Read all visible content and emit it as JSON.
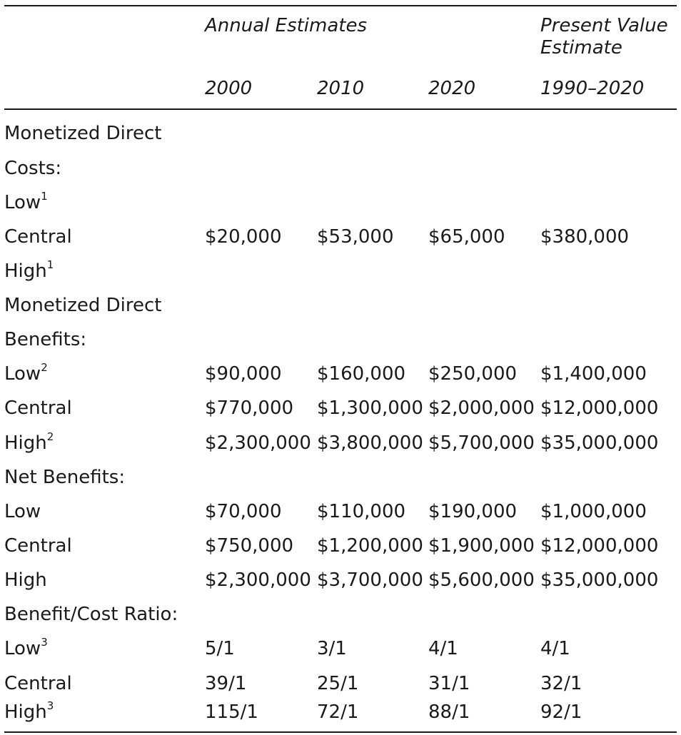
{
  "header": {
    "group_annual": "Annual Estimates",
    "group_pv_line1": "Present Value",
    "group_pv_line2": "Estimate",
    "years": [
      "2000",
      "2010",
      "2020",
      "1990–2020"
    ]
  },
  "rows": [
    {
      "label": "Monetized Direct",
      "sup": "",
      "values": [
        "",
        "",
        "",
        ""
      ]
    },
    {
      "label": "Costs:",
      "sup": "",
      "values": [
        "",
        "",
        "",
        ""
      ]
    },
    {
      "label": "Low",
      "sup": "1",
      "values": [
        "",
        "",
        "",
        ""
      ]
    },
    {
      "label": "Central",
      "sup": "",
      "values": [
        "$20,000",
        "$53,000",
        "$65,000",
        "$380,000"
      ]
    },
    {
      "label": "High",
      "sup": "1",
      "values": [
        "",
        "",
        "",
        ""
      ]
    },
    {
      "label": "Monetized Direct",
      "sup": "",
      "values": [
        "",
        "",
        "",
        ""
      ]
    },
    {
      "label": "Benefits:",
      "sup": "",
      "values": [
        "",
        "",
        "",
        ""
      ]
    },
    {
      "label": "Low",
      "sup": "2",
      "values": [
        "$90,000",
        "$160,000",
        "$250,000",
        "$1,400,000"
      ]
    },
    {
      "label": "Central",
      "sup": "",
      "values": [
        "$770,000",
        "$1,300,000",
        "$2,000,000",
        "$12,000,000"
      ]
    },
    {
      "label": "High",
      "sup": "2",
      "values": [
        "$2,300,000",
        "$3,800,000",
        "$5,700,000",
        "$35,000,000"
      ]
    },
    {
      "label": "Net Benefits:",
      "sup": "",
      "values": [
        "",
        "",
        "",
        ""
      ]
    },
    {
      "label": "Low",
      "sup": "",
      "values": [
        "$70,000",
        "$110,000",
        "$190,000",
        "$1,000,000"
      ]
    },
    {
      "label": "Central",
      "sup": "",
      "values": [
        "$750,000",
        "$1,200,000",
        "$1,900,000",
        "$12,000,000"
      ]
    },
    {
      "label": "High",
      "sup": "",
      "values": [
        "$2,300,000",
        "$3,700,000",
        "$5,600,000",
        "$35,000,000"
      ]
    },
    {
      "label": "Benefit/Cost Ratio:",
      "sup": "",
      "values": [
        "",
        "",
        "",
        ""
      ]
    },
    {
      "label": "Low",
      "sup": "3",
      "values": [
        "5/1",
        "3/1",
        "4/1",
        "4/1"
      ]
    },
    {
      "label": "Central",
      "sup": "",
      "values": [
        "39/1",
        "25/1",
        "31/1",
        "32/1"
      ]
    },
    {
      "label": "High",
      "sup": "3",
      "values": [
        "115/1",
        "72/1",
        "88/1",
        "92/1"
      ]
    }
  ]
}
